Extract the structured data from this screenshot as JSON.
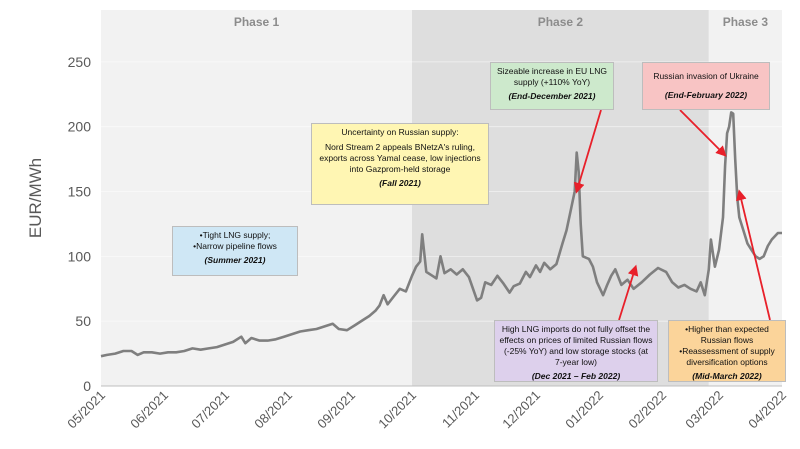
{
  "chart_data": {
    "type": "line",
    "ylabel": "EUR/MWh",
    "ylim": [
      0,
      290
    ],
    "yticks": [
      0,
      50,
      100,
      150,
      200,
      250
    ],
    "xlim": [
      "2021-05-01",
      "2022-04-01"
    ],
    "xticks": [
      "05/2021",
      "06/2021",
      "07/2021",
      "08/2021",
      "09/2021",
      "10/2021",
      "11/2021",
      "12/2021",
      "01/2022",
      "02/2022",
      "03/2022",
      "04/2022"
    ],
    "grid": true,
    "series": [
      {
        "color": "#7f7f7f",
        "points": [
          [
            "2021-05-01",
            23
          ],
          [
            "2021-05-04",
            24
          ],
          [
            "2021-05-08",
            25
          ],
          [
            "2021-05-12",
            27
          ],
          [
            "2021-05-16",
            27
          ],
          [
            "2021-05-19",
            24
          ],
          [
            "2021-05-22",
            26
          ],
          [
            "2021-05-26",
            26
          ],
          [
            "2021-05-30",
            25
          ],
          [
            "2021-06-03",
            26
          ],
          [
            "2021-06-07",
            26
          ],
          [
            "2021-06-11",
            27
          ],
          [
            "2021-06-15",
            29
          ],
          [
            "2021-06-19",
            28
          ],
          [
            "2021-06-23",
            29
          ],
          [
            "2021-06-27",
            30
          ],
          [
            "2021-07-01",
            32
          ],
          [
            "2021-07-05",
            34
          ],
          [
            "2021-07-09",
            38
          ],
          [
            "2021-07-11",
            33
          ],
          [
            "2021-07-14",
            37
          ],
          [
            "2021-07-18",
            35
          ],
          [
            "2021-07-22",
            35
          ],
          [
            "2021-07-26",
            36
          ],
          [
            "2021-07-30",
            38
          ],
          [
            "2021-08-03",
            40
          ],
          [
            "2021-08-07",
            42
          ],
          [
            "2021-08-11",
            43
          ],
          [
            "2021-08-15",
            44
          ],
          [
            "2021-08-19",
            46
          ],
          [
            "2021-08-23",
            48
          ],
          [
            "2021-08-26",
            44
          ],
          [
            "2021-08-30",
            43
          ],
          [
            "2021-09-03",
            47
          ],
          [
            "2021-09-07",
            51
          ],
          [
            "2021-09-10",
            54
          ],
          [
            "2021-09-13",
            58
          ],
          [
            "2021-09-15",
            62
          ],
          [
            "2021-09-17",
            70
          ],
          [
            "2021-09-19",
            63
          ],
          [
            "2021-09-22",
            69
          ],
          [
            "2021-09-25",
            75
          ],
          [
            "2021-09-28",
            73
          ],
          [
            "2021-10-01",
            85
          ],
          [
            "2021-10-03",
            92
          ],
          [
            "2021-10-05",
            96
          ],
          [
            "2021-10-06",
            117
          ],
          [
            "2021-10-08",
            88
          ],
          [
            "2021-10-11",
            85
          ],
          [
            "2021-10-13",
            83
          ],
          [
            "2021-10-15",
            100
          ],
          [
            "2021-10-17",
            87
          ],
          [
            "2021-10-20",
            90
          ],
          [
            "2021-10-23",
            86
          ],
          [
            "2021-10-26",
            90
          ],
          [
            "2021-10-29",
            84
          ],
          [
            "2021-11-02",
            66
          ],
          [
            "2021-11-04",
            68
          ],
          [
            "2021-11-06",
            80
          ],
          [
            "2021-11-09",
            78
          ],
          [
            "2021-11-12",
            85
          ],
          [
            "2021-11-15",
            79
          ],
          [
            "2021-11-18",
            72
          ],
          [
            "2021-11-20",
            77
          ],
          [
            "2021-11-23",
            79
          ],
          [
            "2021-11-26",
            88
          ],
          [
            "2021-11-28",
            84
          ],
          [
            "2021-12-01",
            93
          ],
          [
            "2021-12-03",
            88
          ],
          [
            "2021-12-05",
            95
          ],
          [
            "2021-12-08",
            90
          ],
          [
            "2021-12-11",
            94
          ],
          [
            "2021-12-14",
            110
          ],
          [
            "2021-12-16",
            120
          ],
          [
            "2021-12-18",
            135
          ],
          [
            "2021-12-20",
            150
          ],
          [
            "2021-12-21",
            180
          ],
          [
            "2021-12-22",
            165
          ],
          [
            "2021-12-23",
            125
          ],
          [
            "2021-12-24",
            100
          ],
          [
            "2021-12-27",
            98
          ],
          [
            "2021-12-29",
            92
          ],
          [
            "2021-12-31",
            80
          ],
          [
            "2022-01-03",
            70
          ],
          [
            "2022-01-05",
            78
          ],
          [
            "2022-01-07",
            85
          ],
          [
            "2022-01-09",
            90
          ],
          [
            "2022-01-12",
            78
          ],
          [
            "2022-01-15",
            82
          ],
          [
            "2022-01-18",
            75
          ],
          [
            "2022-01-22",
            80
          ],
          [
            "2022-01-26",
            86
          ],
          [
            "2022-01-30",
            91
          ],
          [
            "2022-02-03",
            88
          ],
          [
            "2022-02-06",
            80
          ],
          [
            "2022-02-09",
            76
          ],
          [
            "2022-02-12",
            78
          ],
          [
            "2022-02-15",
            75
          ],
          [
            "2022-02-18",
            73
          ],
          [
            "2022-02-20",
            80
          ],
          [
            "2022-02-22",
            70
          ],
          [
            "2022-02-24",
            90
          ],
          [
            "2022-02-25",
            113
          ],
          [
            "2022-02-27",
            92
          ],
          [
            "2022-03-01",
            105
          ],
          [
            "2022-03-03",
            130
          ],
          [
            "2022-03-04",
            170
          ],
          [
            "2022-03-05",
            195
          ],
          [
            "2022-03-06",
            200
          ],
          [
            "2022-03-07",
            211
          ],
          [
            "2022-03-08",
            210
          ],
          [
            "2022-03-09",
            175
          ],
          [
            "2022-03-10",
            145
          ],
          [
            "2022-03-11",
            130
          ],
          [
            "2022-03-13",
            120
          ],
          [
            "2022-03-15",
            110
          ],
          [
            "2022-03-17",
            105
          ],
          [
            "2022-03-19",
            100
          ],
          [
            "2022-03-21",
            98
          ],
          [
            "2022-03-23",
            100
          ],
          [
            "2022-03-25",
            108
          ],
          [
            "2022-03-27",
            113
          ],
          [
            "2022-03-30",
            118
          ],
          [
            "2022-04-01",
            118
          ]
        ]
      }
    ],
    "phases": [
      {
        "label": "Phase 1",
        "start": "2021-05-01",
        "end": "2021-10-01",
        "color": "#f2f2f2"
      },
      {
        "label": "Phase 2",
        "start": "2021-10-01",
        "end": "2022-02-24",
        "color": "#dedede"
      },
      {
        "label": "Phase 3",
        "start": "2022-02-24",
        "end": "2022-04-01",
        "color": "#f2f2f2"
      }
    ],
    "annotations": [
      {
        "lines": [
          "Tight LNG supply;",
          "Narrow pipeline flows"
        ],
        "bullets": true,
        "date": "(Summer 2021)",
        "color": "#cfe7f5"
      },
      {
        "lines": [
          "Uncertainty on Russian supply:",
          "Nord Stream 2 appeals BNetzA's ruling, exports across Yamal cease, low injections into Gazprom-held storage"
        ],
        "bullets": false,
        "date": "(Fall 2021)",
        "color": "#fff6b3"
      },
      {
        "lines": [
          "Sizeable increase in EU LNG supply (+110% YoY)"
        ],
        "bullets": false,
        "date": "(End-December 2021)",
        "color": "#cde9cc"
      },
      {
        "lines": [
          "High LNG imports do not fully offset the effects on prices of limited Russian flows (-25% YoY) and low storage stocks (at 7-year low)"
        ],
        "bullets": false,
        "date": "(Dec 2021 – Feb 2022)",
        "color": "#ddd0ec"
      },
      {
        "lines": [
          "Russian invasion of Ukraine"
        ],
        "bullets": false,
        "date": "(End-February 2022)",
        "color": "#f8c4c4"
      },
      {
        "lines": [
          "Higher than expected Russian flows",
          "Reassessment of supply diversification options"
        ],
        "bullets": true,
        "date": "(Mid-March 2022)",
        "color": "#fbd49a"
      }
    ],
    "arrows": [
      {
        "from_ann": 2,
        "to": [
          "2021-12-21",
          150
        ]
      },
      {
        "from_ann": 3,
        "to": [
          "2022-01-19",
          92
        ]
      },
      {
        "from_ann": 4,
        "to": [
          "2022-03-04",
          178
        ]
      },
      {
        "from_ann": 5,
        "to": [
          "2022-03-11",
          150
        ]
      }
    ]
  }
}
